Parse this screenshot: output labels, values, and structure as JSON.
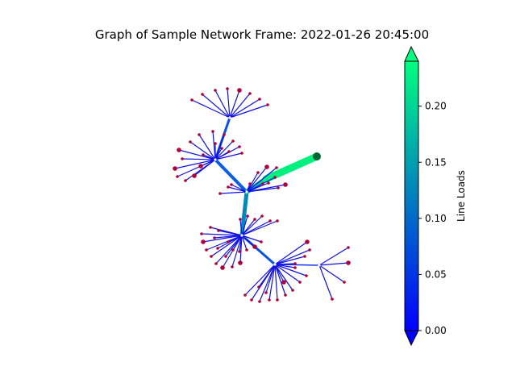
{
  "title": "Graph of Sample Network Frame: 2022-01-26 20:45:00",
  "colorbar": {
    "label": "Line Loads",
    "colormap": "winter",
    "range": [
      0.0,
      0.24
    ],
    "ticks": [
      "0.00",
      "0.05",
      "0.10",
      "0.15",
      "0.20"
    ],
    "tick_values": [
      0.0,
      0.05,
      0.1,
      0.15,
      0.2
    ],
    "extend": "both",
    "color_low": "#0000ff",
    "color_high": "#00ff80"
  },
  "node_color": "#b0003a",
  "source_node_color": "#006633",
  "hub_color": "#ffffff"
}
